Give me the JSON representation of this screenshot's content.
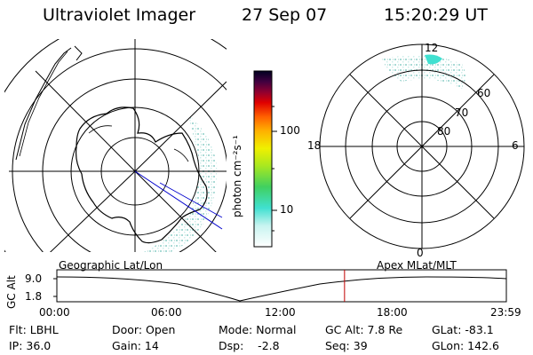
{
  "header": {
    "instrument": "Ultraviolet Imager",
    "date": "27 Sep 07",
    "time": "15:20:29 UT"
  },
  "colorbar": {
    "unit_label": "photon cm⁻²s⁻¹",
    "ticks": [
      "100",
      "10"
    ]
  },
  "mlt_dial": {
    "hour_labels": [
      "12",
      "18",
      "6",
      "0"
    ],
    "lat_labels": [
      "60",
      "70",
      "80"
    ]
  },
  "timeline": {
    "axis_label": "GC Alt",
    "y_ticks": [
      "9.0",
      "1.8"
    ],
    "left_caption": "Geographic Lat/Lon",
    "right_caption": "Apex MLat/MLT",
    "x_ticks": [
      "00:00",
      "06:00",
      "12:00",
      "18:00",
      "23:59"
    ],
    "current_time_fraction": 0.64
  },
  "status": {
    "rows": [
      [
        "Flt: LBHL",
        "Door: Open",
        "Mode: Normal",
        "GC Alt: 7.8 Re",
        "GLat: -83.1"
      ],
      [
        "IP: 36.0",
        "Gain: 14",
        "Dsp:    -2.8",
        "Seq: 39",
        "GLon: 142.6"
      ]
    ]
  },
  "colors": {
    "marker": "#c00000",
    "track": "#0000cc",
    "aurora": "#40e0d0"
  }
}
